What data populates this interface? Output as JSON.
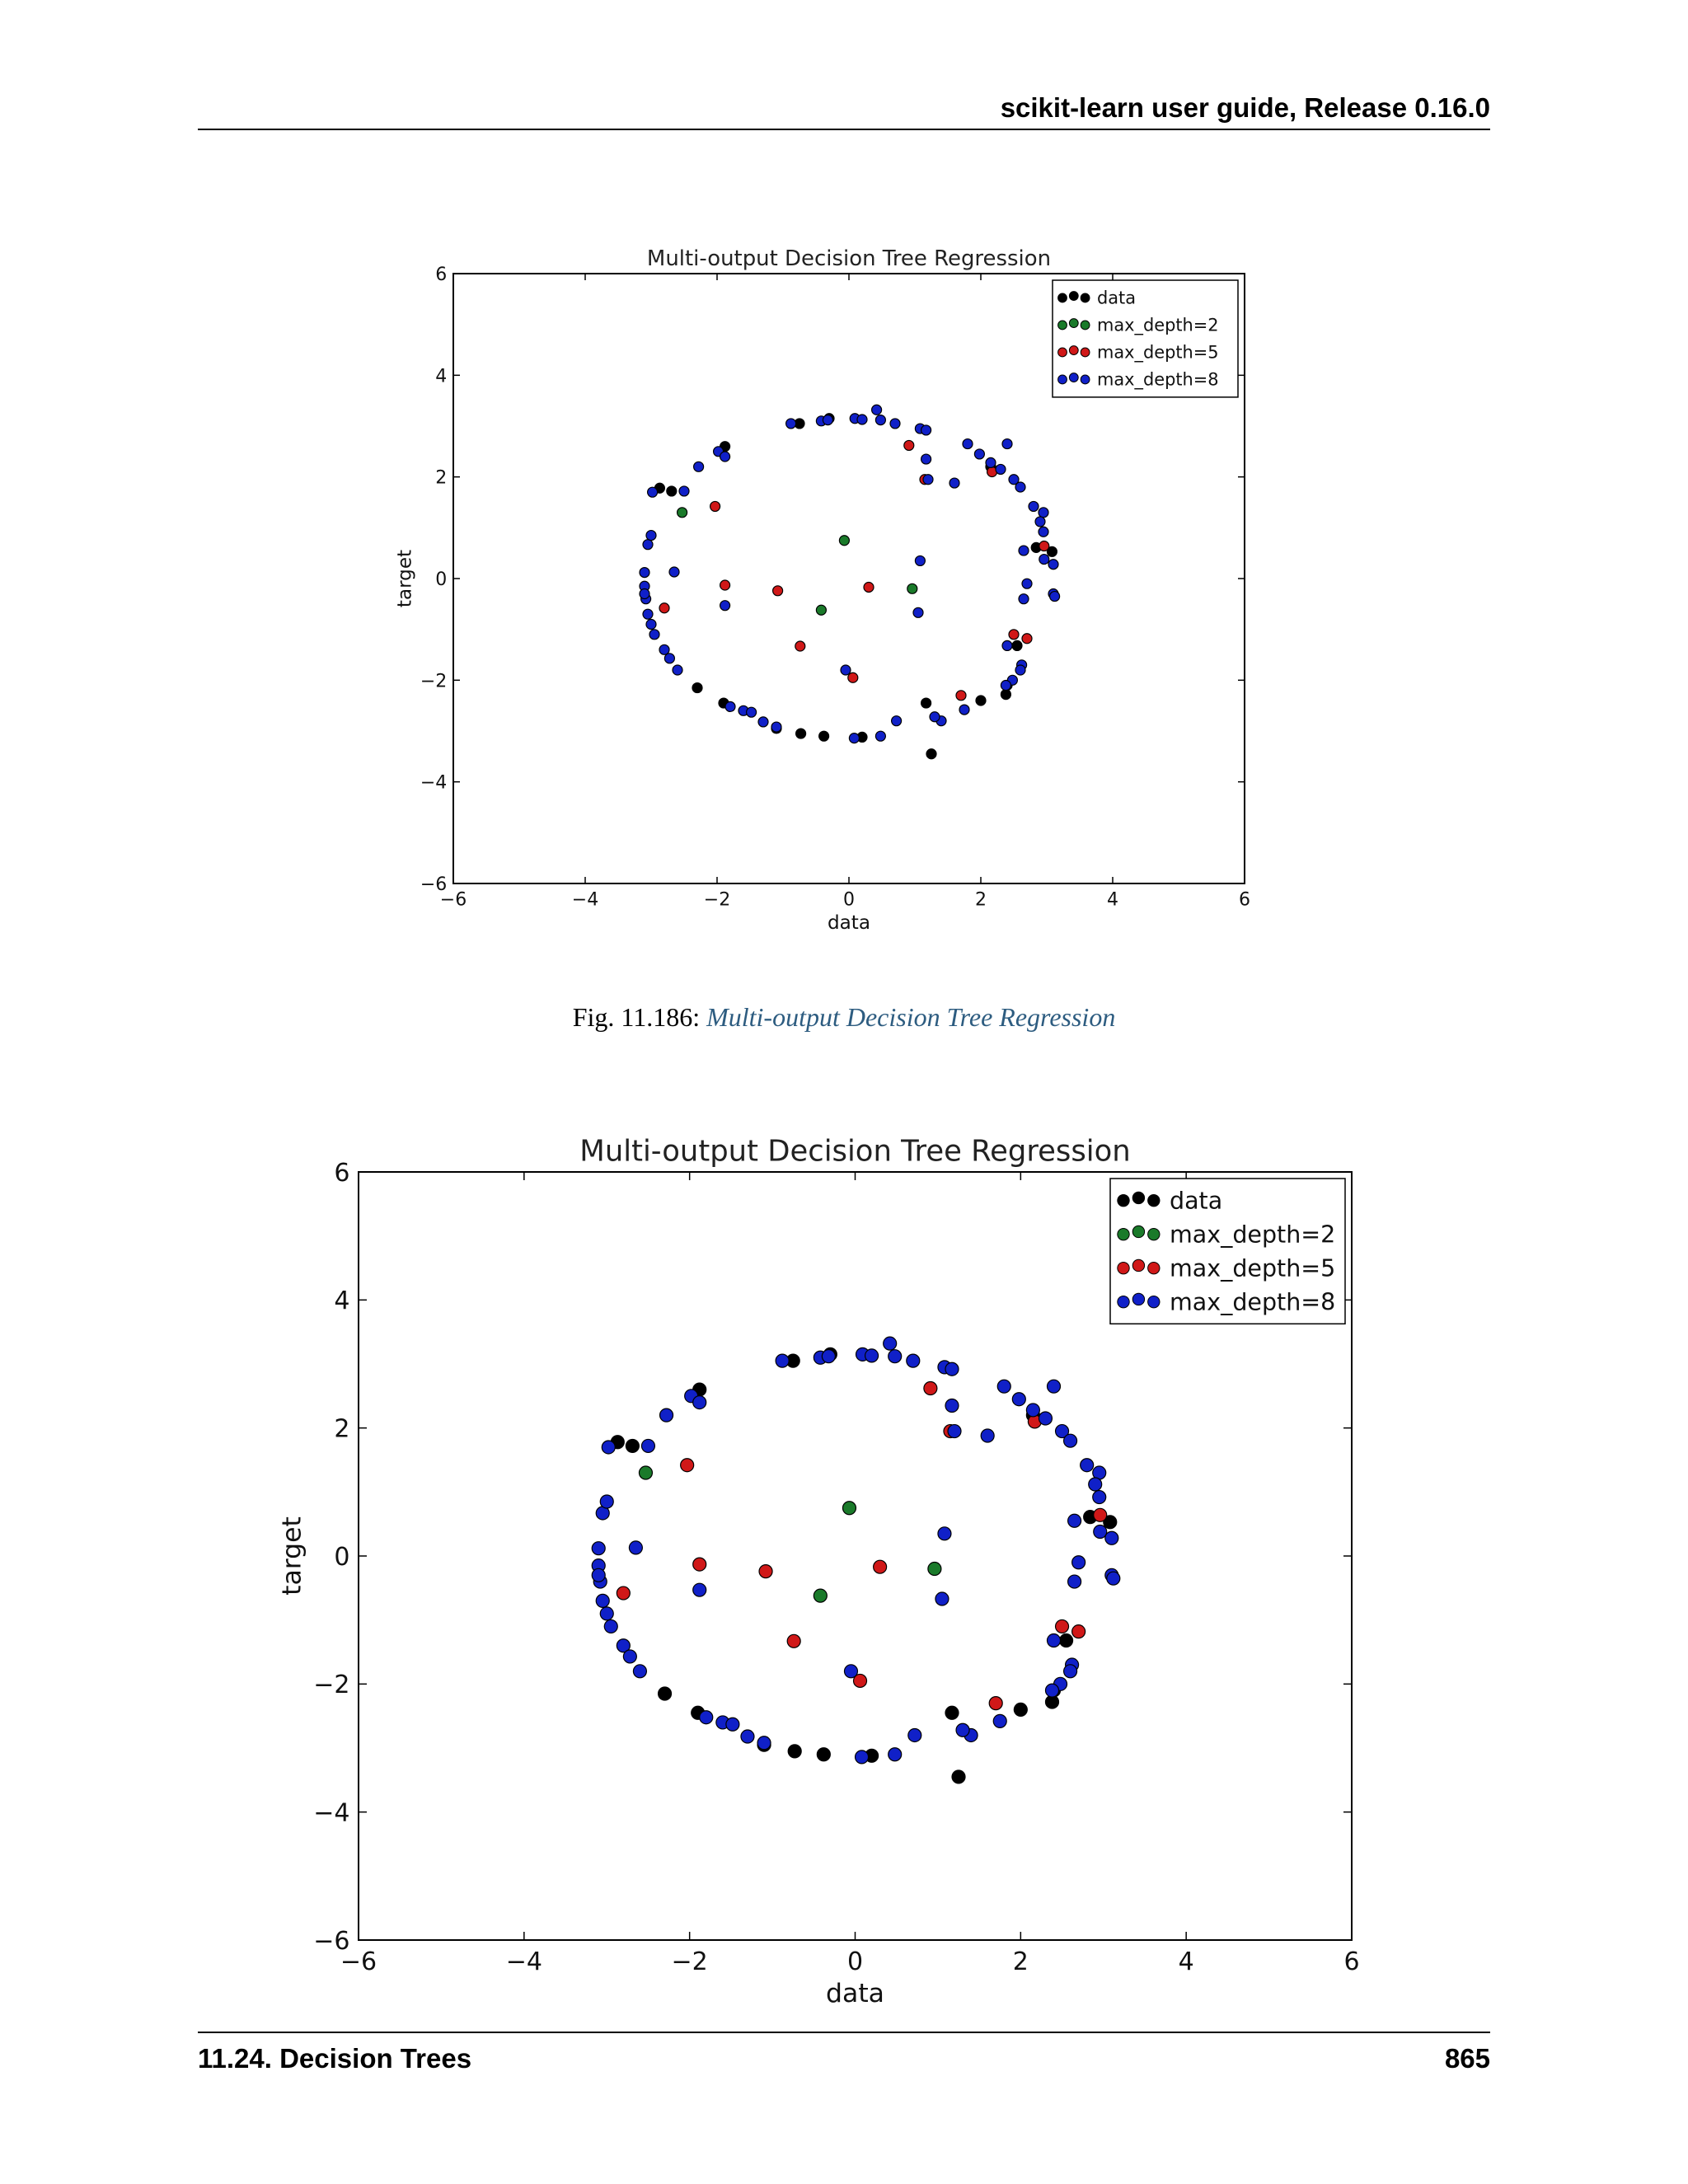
{
  "header": {
    "title": "scikit-learn user guide, Release 0.16.0"
  },
  "figure1": {
    "caption_prefix": "Fig.  11.186: ",
    "caption_link": "Multi-output Decision Tree Regression"
  },
  "footer": {
    "section": "11.24.  Decision Trees",
    "page": "865"
  },
  "colors": {
    "data": "#000000",
    "max_depth=2": "#1a7a2a",
    "max_depth=5": "#d01818",
    "max_depth=8": "#1020c8"
  },
  "chart_data": [
    {
      "type": "scatter",
      "title": "Multi-output Decision Tree Regression",
      "xlabel": "data",
      "ylabel": "target",
      "xlim": [
        -6,
        6
      ],
      "ylim": [
        -6,
        6
      ],
      "xticks": [
        "−6",
        "−4",
        "−2",
        "0",
        "2",
        "4",
        "6"
      ],
      "yticks": [
        "−6",
        "−4",
        "−2",
        "0",
        "2",
        "4",
        "6"
      ],
      "grid": false,
      "legend": "top-right",
      "series": [
        {
          "name": "data",
          "color": "#000000",
          "points": [
            [
              -1.88,
              2.6
            ],
            [
              -2.69,
              1.72
            ],
            [
              -0.3,
              3.15
            ],
            [
              -0.75,
              3.05
            ],
            [
              -2.3,
              -2.15
            ],
            [
              -1.9,
              -2.45
            ],
            [
              -1.1,
              -2.95
            ],
            [
              -0.73,
              -3.05
            ],
            [
              -0.38,
              -3.1
            ],
            [
              0.2,
              -3.12
            ],
            [
              1.17,
              -2.45
            ],
            [
              1.25,
              -3.45
            ],
            [
              2.0,
              -2.4
            ],
            [
              2.38,
              -2.28
            ],
            [
              2.55,
              -1.32
            ],
            [
              2.84,
              0.61
            ],
            [
              3.08,
              0.53
            ],
            [
              2.15,
              2.2
            ],
            [
              2.4,
              -2.1
            ],
            [
              -2.87,
              1.78
            ]
          ]
        },
        {
          "name": "max_depth=2",
          "color": "#1a7a2a",
          "points": [
            [
              -2.53,
              1.3
            ],
            [
              -0.42,
              -0.62
            ],
            [
              -0.07,
              0.75
            ],
            [
              0.96,
              -0.2
            ]
          ]
        },
        {
          "name": "max_depth=5",
          "color": "#d01818",
          "points": [
            [
              -2.8,
              -0.58
            ],
            [
              -2.03,
              1.42
            ],
            [
              -1.88,
              -0.13
            ],
            [
              -1.08,
              -0.24
            ],
            [
              -0.74,
              -1.33
            ],
            [
              0.06,
              -1.95
            ],
            [
              0.3,
              -0.17
            ],
            [
              0.91,
              2.62
            ],
            [
              1.15,
              1.95
            ],
            [
              1.7,
              -2.3
            ],
            [
              2.17,
              2.1
            ],
            [
              2.5,
              -1.1
            ],
            [
              2.7,
              -1.18
            ],
            [
              2.96,
              0.64
            ]
          ]
        },
        {
          "name": "max_depth=8",
          "color": "#1020c8",
          "points": [
            [
              -3.1,
              0.12
            ],
            [
              -3.1,
              -0.15
            ],
            [
              -3.08,
              -0.4
            ],
            [
              -3.05,
              -0.7
            ],
            [
              -3.0,
              -0.9
            ],
            [
              -2.95,
              -1.1
            ],
            [
              -2.8,
              -1.4
            ],
            [
              -2.72,
              -1.57
            ],
            [
              -2.6,
              -1.8
            ],
            [
              -3.05,
              0.67
            ],
            [
              -3.0,
              0.85
            ],
            [
              -2.98,
              1.7
            ],
            [
              -2.5,
              1.72
            ],
            [
              -2.28,
              2.2
            ],
            [
              -1.98,
              2.5
            ],
            [
              -1.88,
              2.4
            ],
            [
              -1.8,
              -2.52
            ],
            [
              -1.6,
              -2.6
            ],
            [
              -1.48,
              -2.63
            ],
            [
              -1.3,
              -2.82
            ],
            [
              -1.1,
              -2.92
            ],
            [
              -0.88,
              3.05
            ],
            [
              -0.42,
              3.1
            ],
            [
              -0.32,
              3.12
            ],
            [
              0.09,
              3.15
            ],
            [
              0.2,
              3.13
            ],
            [
              0.42,
              3.32
            ],
            [
              0.48,
              3.12
            ],
            [
              0.7,
              3.05
            ],
            [
              1.08,
              2.95
            ],
            [
              1.17,
              2.92
            ],
            [
              1.17,
              2.35
            ],
            [
              1.2,
              1.95
            ],
            [
              1.6,
              1.88
            ],
            [
              1.8,
              2.65
            ],
            [
              1.98,
              2.45
            ],
            [
              2.15,
              2.28
            ],
            [
              2.3,
              2.15
            ],
            [
              2.4,
              2.65
            ],
            [
              2.5,
              1.95
            ],
            [
              2.6,
              1.8
            ],
            [
              2.8,
              1.42
            ],
            [
              2.95,
              1.3
            ],
            [
              2.9,
              1.12
            ],
            [
              2.95,
              0.92
            ],
            [
              2.96,
              0.38
            ],
            [
              3.1,
              0.28
            ],
            [
              3.1,
              -0.3
            ],
            [
              3.12,
              -0.35
            ],
            [
              2.65,
              0.55
            ],
            [
              2.7,
              -0.1
            ],
            [
              2.65,
              -0.4
            ],
            [
              2.4,
              -1.32
            ],
            [
              2.62,
              -1.7
            ],
            [
              2.6,
              -1.8
            ],
            [
              2.48,
              -2.0
            ],
            [
              2.38,
              -2.1
            ],
            [
              1.75,
              -2.58
            ],
            [
              1.4,
              -2.8
            ],
            [
              1.3,
              -2.72
            ],
            [
              0.72,
              -2.8
            ],
            [
              0.48,
              -3.1
            ],
            [
              0.08,
              -3.14
            ],
            [
              -0.05,
              -1.8
            ],
            [
              1.05,
              -0.67
            ],
            [
              1.08,
              0.35
            ],
            [
              -1.88,
              -0.53
            ],
            [
              -2.65,
              0.13
            ],
            [
              -3.1,
              -0.3
            ]
          ]
        }
      ]
    },
    {
      "type": "scatter",
      "title": "Multi-output Decision Tree Regression",
      "xlabel": "data",
      "ylabel": "target",
      "xlim": [
        -6,
        6
      ],
      "ylim": [
        -6,
        6
      ],
      "xticks": [
        "−6",
        "−4",
        "−2",
        "0",
        "2",
        "4",
        "6"
      ],
      "yticks": [
        "−6",
        "−4",
        "−2",
        "0",
        "2",
        "4",
        "6"
      ],
      "grid": false,
      "legend": "top-right",
      "series": [
        {
          "name": "data",
          "color": "#000000",
          "points": [
            [
              -1.88,
              2.6
            ],
            [
              -2.69,
              1.72
            ],
            [
              -0.3,
              3.15
            ],
            [
              -0.75,
              3.05
            ],
            [
              -2.3,
              -2.15
            ],
            [
              -1.9,
              -2.45
            ],
            [
              -1.1,
              -2.95
            ],
            [
              -0.73,
              -3.05
            ],
            [
              -0.38,
              -3.1
            ],
            [
              0.2,
              -3.12
            ],
            [
              1.17,
              -2.45
            ],
            [
              1.25,
              -3.45
            ],
            [
              2.0,
              -2.4
            ],
            [
              2.38,
              -2.28
            ],
            [
              2.55,
              -1.32
            ],
            [
              2.84,
              0.61
            ],
            [
              3.08,
              0.53
            ],
            [
              2.15,
              2.2
            ],
            [
              2.4,
              -2.1
            ],
            [
              -2.87,
              1.78
            ]
          ]
        },
        {
          "name": "max_depth=2",
          "color": "#1a7a2a",
          "points": [
            [
              -2.53,
              1.3
            ],
            [
              -0.42,
              -0.62
            ],
            [
              -0.07,
              0.75
            ],
            [
              0.96,
              -0.2
            ]
          ]
        },
        {
          "name": "max_depth=5",
          "color": "#d01818",
          "points": [
            [
              -2.8,
              -0.58
            ],
            [
              -2.03,
              1.42
            ],
            [
              -1.88,
              -0.13
            ],
            [
              -1.08,
              -0.24
            ],
            [
              -0.74,
              -1.33
            ],
            [
              0.06,
              -1.95
            ],
            [
              0.3,
              -0.17
            ],
            [
              0.91,
              2.62
            ],
            [
              1.15,
              1.95
            ],
            [
              1.7,
              -2.3
            ],
            [
              2.17,
              2.1
            ],
            [
              2.5,
              -1.1
            ],
            [
              2.7,
              -1.18
            ],
            [
              2.96,
              0.64
            ]
          ]
        },
        {
          "name": "max_depth=8",
          "color": "#1020c8",
          "points": [
            [
              -3.1,
              0.12
            ],
            [
              -3.1,
              -0.15
            ],
            [
              -3.08,
              -0.4
            ],
            [
              -3.05,
              -0.7
            ],
            [
              -3.0,
              -0.9
            ],
            [
              -2.95,
              -1.1
            ],
            [
              -2.8,
              -1.4
            ],
            [
              -2.72,
              -1.57
            ],
            [
              -2.6,
              -1.8
            ],
            [
              -3.05,
              0.67
            ],
            [
              -3.0,
              0.85
            ],
            [
              -2.98,
              1.7
            ],
            [
              -2.5,
              1.72
            ],
            [
              -2.28,
              2.2
            ],
            [
              -1.98,
              2.5
            ],
            [
              -1.88,
              2.4
            ],
            [
              -1.8,
              -2.52
            ],
            [
              -1.6,
              -2.6
            ],
            [
              -1.48,
              -2.63
            ],
            [
              -1.3,
              -2.82
            ],
            [
              -1.1,
              -2.92
            ],
            [
              -0.88,
              3.05
            ],
            [
              -0.42,
              3.1
            ],
            [
              -0.32,
              3.12
            ],
            [
              0.09,
              3.15
            ],
            [
              0.2,
              3.13
            ],
            [
              0.42,
              3.32
            ],
            [
              0.48,
              3.12
            ],
            [
              0.7,
              3.05
            ],
            [
              1.08,
              2.95
            ],
            [
              1.17,
              2.92
            ],
            [
              1.17,
              2.35
            ],
            [
              1.2,
              1.95
            ],
            [
              1.6,
              1.88
            ],
            [
              1.8,
              2.65
            ],
            [
              1.98,
              2.45
            ],
            [
              2.15,
              2.28
            ],
            [
              2.3,
              2.15
            ],
            [
              2.4,
              2.65
            ],
            [
              2.5,
              1.95
            ],
            [
              2.6,
              1.8
            ],
            [
              2.8,
              1.42
            ],
            [
              2.95,
              1.3
            ],
            [
              2.9,
              1.12
            ],
            [
              2.95,
              0.92
            ],
            [
              2.96,
              0.38
            ],
            [
              3.1,
              0.28
            ],
            [
              3.1,
              -0.3
            ],
            [
              3.12,
              -0.35
            ],
            [
              2.65,
              0.55
            ],
            [
              2.7,
              -0.1
            ],
            [
              2.65,
              -0.4
            ],
            [
              2.4,
              -1.32
            ],
            [
              2.62,
              -1.7
            ],
            [
              2.6,
              -1.8
            ],
            [
              2.48,
              -2.0
            ],
            [
              2.38,
              -2.1
            ],
            [
              1.75,
              -2.58
            ],
            [
              1.4,
              -2.8
            ],
            [
              1.3,
              -2.72
            ],
            [
              0.72,
              -2.8
            ],
            [
              0.48,
              -3.1
            ],
            [
              0.08,
              -3.14
            ],
            [
              -0.05,
              -1.8
            ],
            [
              1.05,
              -0.67
            ],
            [
              1.08,
              0.35
            ],
            [
              -1.88,
              -0.53
            ],
            [
              -2.65,
              0.13
            ],
            [
              -3.1,
              -0.3
            ]
          ]
        }
      ]
    }
  ]
}
